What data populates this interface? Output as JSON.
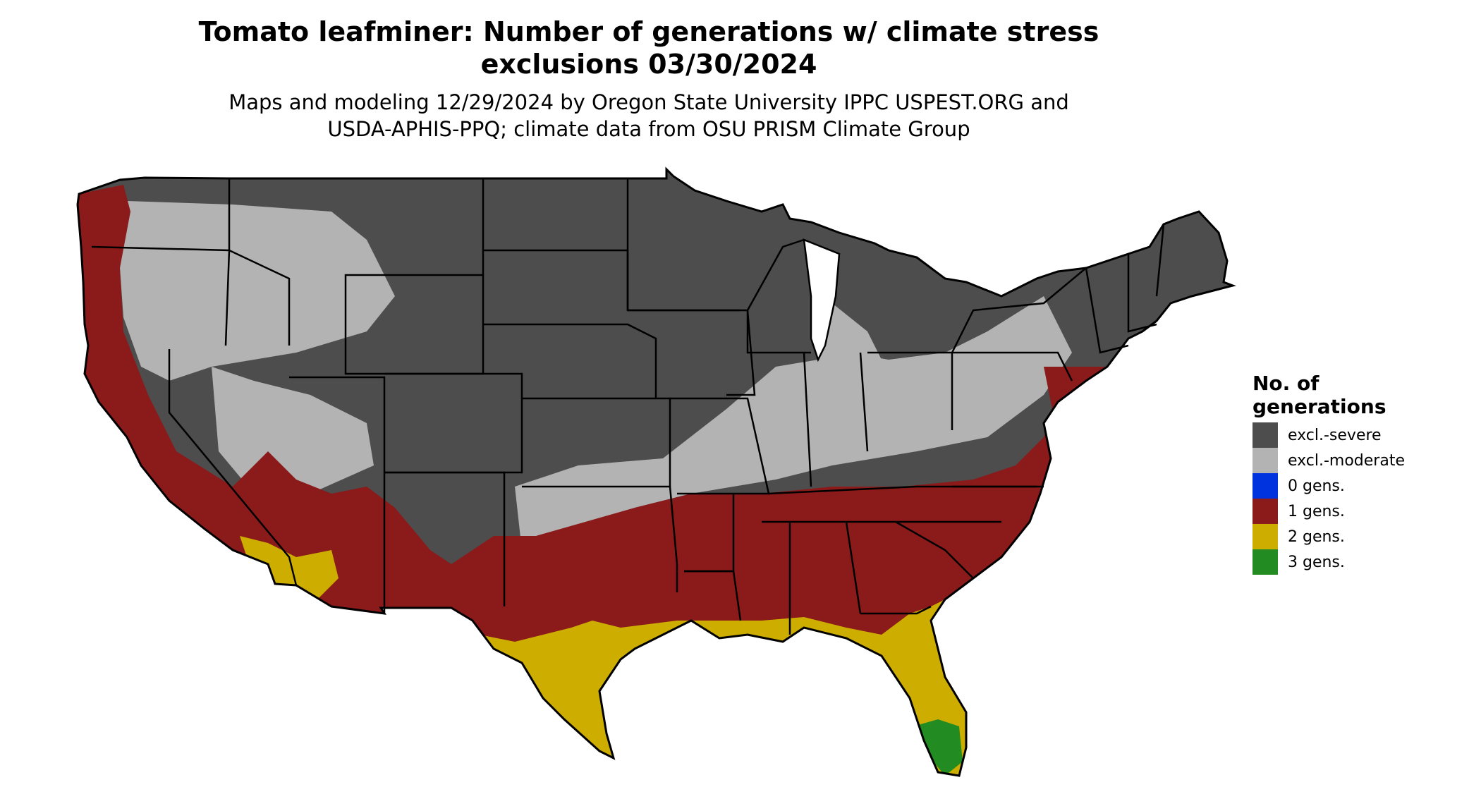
{
  "title": {
    "line1": "Tomato leafminer: Number of generations w/ climate stress",
    "line2": "exclusions 03/30/2024"
  },
  "subtitle": {
    "line1": "Maps and modeling 12/29/2024 by Oregon State University IPPC USPEST.ORG and",
    "line2": "USDA-APHIS-PPQ; climate data from OSU PRISM Climate Group"
  },
  "legend": {
    "title_line1": "No. of",
    "title_line2": "generations",
    "items": [
      {
        "label": "excl.-severe",
        "color": "#4d4d4d"
      },
      {
        "label": "excl.-moderate",
        "color": "#b3b3b3"
      },
      {
        "label": "0 gens.",
        "color": "#0033dd"
      },
      {
        "label": "1 gens.",
        "color": "#8b1a1a"
      },
      {
        "label": "2 gens.",
        "color": "#ccad00"
      },
      {
        "label": "3 gens.",
        "color": "#228b22"
      }
    ]
  }
}
